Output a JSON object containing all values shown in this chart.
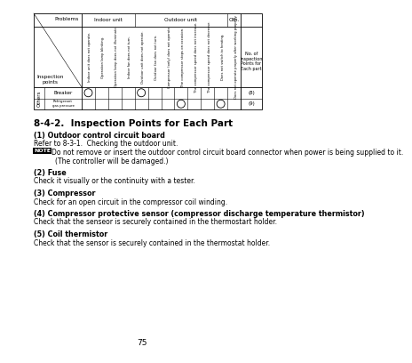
{
  "bg_color": "#ffffff",
  "page_number": "75",
  "section_title": "8-4-2.  Inspection Points for Each Part",
  "items": [
    {
      "num": "(1) Outdoor control circuit board",
      "lines": [
        {
          "text": "Refer to 8-3-1.  Checking the outdoor unit.",
          "note": false,
          "indent": false
        },
        {
          "text": "Do not remove or insert the outdoor control circuit board connector when power is being supplied to it.",
          "note": true,
          "indent": false
        },
        {
          "text": "(The controller will be damaged.)",
          "note": false,
          "indent": true
        }
      ]
    },
    {
      "num": "(2) Fuse",
      "lines": [
        {
          "text": "Check it visually or the continuity with a tester.",
          "note": false,
          "indent": false
        }
      ]
    },
    {
      "num": "(3) Compressor",
      "lines": [
        {
          "text": "Check for an open circuit in the compressor coil winding.",
          "note": false,
          "indent": false
        }
      ]
    },
    {
      "num": "(4) Compressor protective sensor (compressor discharge temperature thermistor)",
      "lines": [
        {
          "text": "Check that the senseor is securely contained in the thermostart holder.",
          "note": false,
          "indent": false
        }
      ]
    },
    {
      "num": "(5) Coil thermistor",
      "lines": [
        {
          "text": "Check that the sensor is securely contained in the thermostat holder.",
          "note": false,
          "indent": false
        }
      ]
    }
  ],
  "col_headers": [
    "Indoor unit does not operate.",
    "Operation lamp blinking.",
    "Operation lamp does not illuminate.",
    "Indoor fan does not turn.",
    "Outdoor unit does not operate.",
    "Outdoor fan does not turn.",
    "Compressor (only) does not operate.",
    "The compressor stops on occasion.",
    "The compressor speed does not increase.",
    "The compressor speed does not decrease.",
    "Does not switch to heating.",
    "Does not operate properly after working properly."
  ],
  "n_indoor_cols": 4,
  "n_outdoor_cols": 7,
  "n_other_cols": 1,
  "row_labels": [
    "Breaker",
    "Refrigerant gas pressure"
  ],
  "row_group_label": "Others",
  "breaker_circles": [
    0,
    4
  ],
  "refrig_circles": [
    7,
    10
  ],
  "breaker_num": "(8)",
  "refrig_num": "(9)"
}
